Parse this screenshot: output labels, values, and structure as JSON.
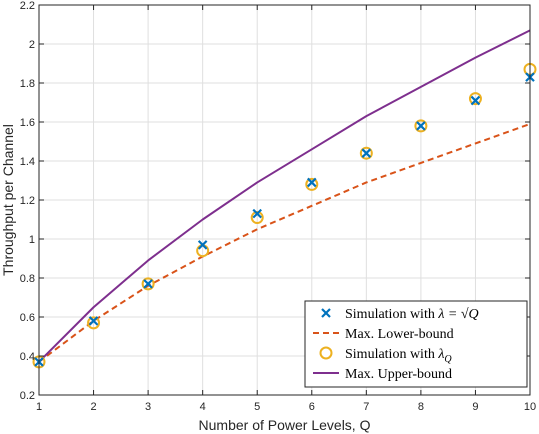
{
  "chart_data": {
    "type": "line",
    "title": "",
    "xlabel": "Number of Power Levels, Q",
    "ylabel": "Throughput per Channel",
    "xlim": [
      1,
      10
    ],
    "ylim": [
      0.2,
      2.2
    ],
    "xticks": [
      "1",
      "2",
      "3",
      "4",
      "5",
      "6",
      "7",
      "8",
      "9",
      "10"
    ],
    "yticks": [
      "0.2",
      "0.4",
      "0.6",
      "0.8",
      "1",
      "1.2",
      "1.4",
      "1.6",
      "1.8",
      "2",
      "2.2"
    ],
    "grid": true,
    "legend_position": "bottom-right",
    "x": [
      1,
      2,
      3,
      4,
      5,
      6,
      7,
      8,
      9,
      10
    ],
    "series": [
      {
        "name": "Simulation with λ = √Q",
        "legend_prefix": "Simulation with ",
        "legend_math": "λ = √Q",
        "marker": "x",
        "color": "#0072BD",
        "values": [
          0.37,
          0.58,
          0.77,
          0.97,
          1.13,
          1.29,
          1.44,
          1.58,
          1.71,
          1.83
        ]
      },
      {
        "name": "Max. Lower-bound",
        "legend_prefix": "Max. Lower-bound",
        "legend_math": "",
        "marker": "dashed",
        "color": "#D95319",
        "values": [
          0.37,
          0.58,
          0.76,
          0.91,
          1.05,
          1.17,
          1.29,
          1.39,
          1.49,
          1.59
        ]
      },
      {
        "name": "Simulation with λQ",
        "legend_prefix": "Simulation with ",
        "legend_math": "λ",
        "legend_sub": "Q",
        "marker": "o",
        "color": "#EDB120",
        "values": [
          0.37,
          0.57,
          0.77,
          0.94,
          1.11,
          1.28,
          1.44,
          1.58,
          1.72,
          1.87
        ]
      },
      {
        "name": "Max. Upper-bound",
        "legend_prefix": "Max. Upper-bound",
        "legend_math": "",
        "marker": "solid",
        "color": "#7E2F8E",
        "values": [
          0.37,
          0.65,
          0.89,
          1.1,
          1.29,
          1.46,
          1.63,
          1.78,
          1.93,
          2.07
        ]
      }
    ]
  }
}
